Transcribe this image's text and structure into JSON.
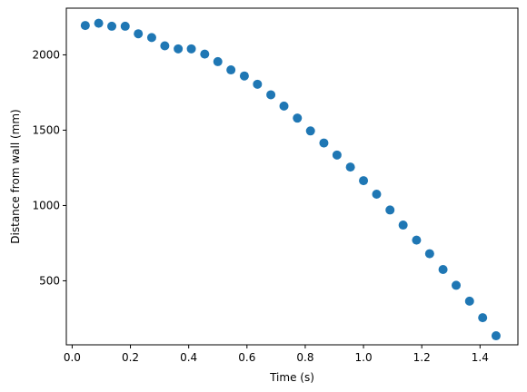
{
  "chart_data": {
    "type": "scatter",
    "title": "",
    "xlabel": "Time (s)",
    "ylabel": "Distance from wall (mm)",
    "xlim": [
      -0.02,
      1.53
    ],
    "ylim": [
      75,
      2310
    ],
    "xticks": [
      0.0,
      0.2,
      0.4,
      0.6,
      0.8,
      1.0,
      1.2,
      1.4
    ],
    "xtick_labels": [
      "0.0",
      "0.2",
      "0.4",
      "0.6",
      "0.8",
      "1.0",
      "1.2",
      "1.4"
    ],
    "yticks": [
      500,
      1000,
      1500,
      2000
    ],
    "ytick_labels": [
      "500",
      "1000",
      "1500",
      "2000"
    ],
    "grid": false,
    "marker_color": "#1f77b4",
    "series": [
      {
        "x": [
          0.045,
          0.091,
          0.136,
          0.182,
          0.227,
          0.273,
          0.318,
          0.364,
          0.409,
          0.455,
          0.5,
          0.545,
          0.591,
          0.636,
          0.682,
          0.727,
          0.773,
          0.818,
          0.864,
          0.909,
          0.955,
          1.0,
          1.045,
          1.091,
          1.136,
          1.182,
          1.227,
          1.273,
          1.318,
          1.364,
          1.409,
          1.455
        ],
        "y": [
          2195,
          2210,
          2190,
          2190,
          2140,
          2115,
          2060,
          2040,
          2040,
          2005,
          1955,
          1900,
          1860,
          1805,
          1735,
          1660,
          1580,
          1495,
          1415,
          1335,
          1255,
          1165,
          1075,
          970,
          870,
          770,
          680,
          575,
          470,
          365,
          255,
          135
        ]
      }
    ]
  }
}
